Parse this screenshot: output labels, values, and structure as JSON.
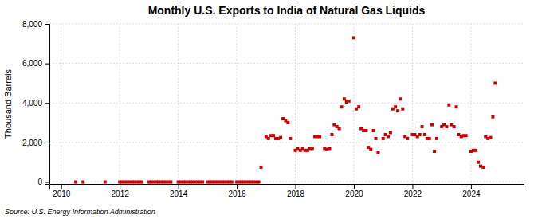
{
  "chart_data": {
    "type": "scatter",
    "title": "Monthly U.S. Exports to India of Natural Gas Liquids",
    "y_label": "Thousand Barrels",
    "annotations": [
      "Source: U.S. Energy Information Administration"
    ],
    "color": "#cc0000",
    "marker": "square",
    "grid": true,
    "xlim": [
      2009.6,
      2025.8
    ],
    "ylim": [
      -100,
      8000
    ],
    "xticks": [
      2010,
      2012,
      2014,
      2016,
      2018,
      2020,
      2022,
      2024
    ],
    "yticks": [
      0,
      {
        "value": 2000,
        "label": "2,000"
      },
      {
        "value": 4000,
        "label": "4,000"
      },
      {
        "value": 6000,
        "label": "6,000"
      },
      {
        "value": 8000,
        "label": "8,000"
      }
    ],
    "x": [
      2010.5,
      2010.75,
      2011.5,
      2012.0,
      2012.08,
      2012.17,
      2012.25,
      2012.33,
      2012.42,
      2012.5,
      2012.58,
      2012.67,
      2012.75,
      2013.0,
      2013.08,
      2013.17,
      2013.25,
      2013.33,
      2013.42,
      2013.5,
      2013.58,
      2013.67,
      2013.75,
      2014.0,
      2014.08,
      2014.17,
      2014.25,
      2014.33,
      2014.42,
      2014.5,
      2014.58,
      2014.67,
      2014.75,
      2014.83,
      2015.0,
      2015.08,
      2015.17,
      2015.25,
      2015.33,
      2015.42,
      2015.5,
      2015.58,
      2015.67,
      2015.75,
      2015.83,
      2016.0,
      2016.08,
      2016.17,
      2016.25,
      2016.33,
      2016.42,
      2016.5,
      2016.58,
      2016.67,
      2016.75,
      2016.83,
      2017.0,
      2017.08,
      2017.17,
      2017.25,
      2017.33,
      2017.42,
      2017.5,
      2017.58,
      2017.67,
      2017.75,
      2017.83,
      2018.0,
      2018.08,
      2018.17,
      2018.25,
      2018.33,
      2018.42,
      2018.5,
      2018.58,
      2018.67,
      2018.75,
      2018.83,
      2019.0,
      2019.08,
      2019.17,
      2019.25,
      2019.33,
      2019.42,
      2019.5,
      2019.58,
      2019.67,
      2019.75,
      2019.83,
      2020.0,
      2020.08,
      2020.17,
      2020.25,
      2020.33,
      2020.42,
      2020.5,
      2020.58,
      2020.67,
      2020.75,
      2020.83,
      2021.0,
      2021.08,
      2021.17,
      2021.25,
      2021.33,
      2021.42,
      2021.5,
      2021.58,
      2021.67,
      2021.75,
      2021.83,
      2022.0,
      2022.08,
      2022.17,
      2022.25,
      2022.33,
      2022.42,
      2022.5,
      2022.58,
      2022.67,
      2022.75,
      2022.83,
      2023.0,
      2023.08,
      2023.17,
      2023.25,
      2023.33,
      2023.42,
      2023.5,
      2023.58,
      2023.67,
      2023.75,
      2023.83,
      2024.0,
      2024.08,
      2024.17,
      2024.25,
      2024.33,
      2024.42,
      2024.5,
      2024.58,
      2024.67,
      2024.75,
      2024.83
    ],
    "values": [
      0,
      0,
      0,
      0,
      0,
      0,
      0,
      0,
      0,
      0,
      0,
      0,
      0,
      0,
      0,
      0,
      0,
      0,
      0,
      0,
      0,
      0,
      0,
      0,
      0,
      0,
      0,
      0,
      0,
      0,
      0,
      0,
      0,
      0,
      0,
      0,
      0,
      0,
      0,
      0,
      0,
      0,
      0,
      0,
      0,
      0,
      0,
      0,
      0,
      0,
      0,
      0,
      0,
      0,
      0,
      750,
      2300,
      2200,
      2350,
      2350,
      2200,
      2200,
      2250,
      3200,
      3100,
      3000,
      2200,
      1600,
      1700,
      1600,
      1700,
      1600,
      1600,
      1700,
      1700,
      2300,
      2300,
      2300,
      1700,
      1650,
      1700,
      2400,
      2900,
      2800,
      2700,
      3800,
      4200,
      4050,
      4100,
      7300,
      3700,
      3800,
      2700,
      2600,
      2600,
      1750,
      1650,
      2600,
      2200,
      1500,
      2200,
      2400,
      2300,
      2500,
      3700,
      3800,
      3600,
      4200,
      3700,
      2300,
      2200,
      2400,
      2400,
      2300,
      2400,
      2800,
      2400,
      2200,
      2200,
      2900,
      1550,
      2200,
      2800,
      2900,
      2800,
      3900,
      2900,
      2800,
      3800,
      2400,
      2300,
      2350,
      2350,
      1550,
      1600,
      1600,
      1000,
      800,
      750,
      2300,
      2200,
      2250,
      3300,
      5000
    ]
  }
}
